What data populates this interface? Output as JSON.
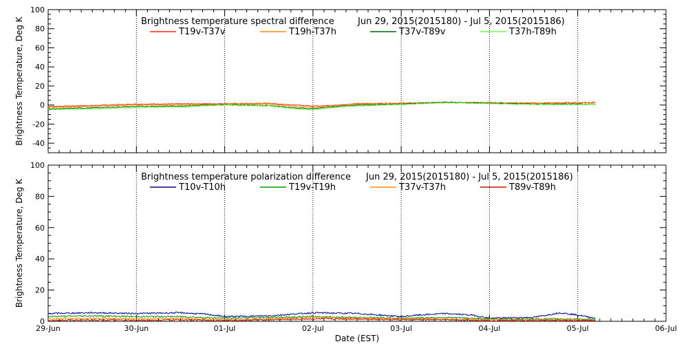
{
  "chart_data": [
    {
      "type": "line",
      "title": "Brightness temperature spectral difference",
      "date_range": "Jun 29, 2015(2015180) - Jul  5, 2015(2015186)",
      "ylabel": "Brightness Temperature, Deg K",
      "xlabel": "",
      "xlim": [
        0,
        7
      ],
      "ylim": [
        -50,
        100
      ],
      "y_ticks": [
        -40,
        -20,
        0,
        20,
        40,
        60,
        80,
        100
      ],
      "grid": "vertical-dotted-at-day-boundaries",
      "legend_position": "top",
      "series": [
        {
          "name": "T19v-T37v",
          "color": "#ff2a00",
          "points": [
            [
              0.0,
              -1.5
            ],
            [
              0.5,
              -0.5
            ],
            [
              1.0,
              1.0
            ],
            [
              1.5,
              1.2
            ],
            [
              2.0,
              1.5
            ],
            [
              2.5,
              1.8
            ],
            [
              2.8,
              0.0
            ],
            [
              3.0,
              -1.0
            ],
            [
              3.2,
              -0.5
            ],
            [
              3.5,
              1.5
            ],
            [
              4.0,
              2.0
            ],
            [
              4.5,
              2.5
            ],
            [
              5.0,
              2.5
            ],
            [
              5.5,
              2.0
            ],
            [
              6.0,
              2.5
            ],
            [
              6.2,
              3.0
            ]
          ]
        },
        {
          "name": "T19h-T37h",
          "color": "#ff8c00",
          "points": [
            [
              0.0,
              -2.5
            ],
            [
              0.5,
              -1.5
            ],
            [
              1.0,
              0.0
            ],
            [
              1.5,
              0.2
            ],
            [
              2.0,
              1.0
            ],
            [
              2.5,
              1.0
            ],
            [
              2.8,
              -1.5
            ],
            [
              3.0,
              -2.5
            ],
            [
              3.2,
              -1.0
            ],
            [
              3.5,
              1.0
            ],
            [
              4.0,
              1.5
            ],
            [
              4.5,
              2.5
            ],
            [
              5.0,
              2.0
            ],
            [
              5.5,
              1.5
            ],
            [
              6.0,
              2.0
            ],
            [
              6.2,
              2.5
            ]
          ]
        },
        {
          "name": "T37v-T89v",
          "color": "#006400",
          "points": [
            [
              0.0,
              -4.0
            ],
            [
              0.5,
              -3.0
            ],
            [
              1.0,
              -1.5
            ],
            [
              1.5,
              -1.0
            ],
            [
              2.0,
              0.5
            ],
            [
              2.5,
              -0.5
            ],
            [
              2.8,
              -3.0
            ],
            [
              3.0,
              -4.0
            ],
            [
              3.2,
              -2.0
            ],
            [
              3.5,
              0.0
            ],
            [
              4.0,
              1.0
            ],
            [
              4.5,
              3.0
            ],
            [
              5.0,
              2.0
            ],
            [
              5.5,
              1.0
            ],
            [
              6.0,
              1.0
            ],
            [
              6.2,
              1.0
            ]
          ]
        },
        {
          "name": "T37h-T89h",
          "color": "#66ff44",
          "points": [
            [
              0.0,
              -5.0
            ],
            [
              0.5,
              -4.0
            ],
            [
              1.0,
              -2.5
            ],
            [
              1.5,
              -2.0
            ],
            [
              2.0,
              0.0
            ],
            [
              2.5,
              -1.0
            ],
            [
              2.8,
              -4.0
            ],
            [
              3.0,
              -5.0
            ],
            [
              3.2,
              -3.0
            ],
            [
              3.5,
              -1.0
            ],
            [
              4.0,
              0.5
            ],
            [
              4.5,
              2.5
            ],
            [
              5.0,
              1.5
            ],
            [
              5.5,
              0.5
            ],
            [
              6.0,
              0.5
            ],
            [
              6.2,
              0.5
            ]
          ]
        }
      ]
    },
    {
      "type": "line",
      "title": "Brightness temperature polarization difference",
      "date_range": "Jun 29, 2015(2015180) - Jul  5, 2015(2015186)",
      "ylabel": "Brightness Temperature, Deg K",
      "xlabel": "Date (EST)",
      "xlim": [
        0,
        7
      ],
      "ylim": [
        0,
        100
      ],
      "y_ticks": [
        0,
        20,
        40,
        60,
        80,
        100
      ],
      "x_tick_labels": [
        "29-Jun",
        "30-Jun",
        "01-Jul",
        "02-Jul",
        "03-Jul",
        "04-Jul",
        "05-Jul",
        "06-Jul"
      ],
      "grid": "vertical-dotted-at-day-boundaries",
      "legend_position": "top",
      "series": [
        {
          "name": "T10v-T10h",
          "color": "#00008b",
          "points": [
            [
              0.0,
              5.0
            ],
            [
              0.5,
              5.5
            ],
            [
              1.0,
              5.0
            ],
            [
              1.5,
              5.5
            ],
            [
              1.8,
              4.5
            ],
            [
              2.0,
              3.0
            ],
            [
              2.5,
              3.5
            ],
            [
              3.0,
              5.5
            ],
            [
              3.5,
              5.0
            ],
            [
              4.0,
              3.0
            ],
            [
              4.2,
              4.0
            ],
            [
              4.5,
              5.0
            ],
            [
              4.8,
              4.0
            ],
            [
              5.0,
              2.0
            ],
            [
              5.5,
              2.5
            ],
            [
              5.8,
              5.5
            ],
            [
              6.0,
              4.0
            ],
            [
              6.2,
              2.0
            ]
          ]
        },
        {
          "name": "T19v-T19h",
          "color": "#009900",
          "points": [
            [
              0.0,
              3.0
            ],
            [
              0.5,
              3.5
            ],
            [
              1.0,
              3.0
            ],
            [
              1.5,
              3.0
            ],
            [
              2.0,
              2.0
            ],
            [
              2.5,
              2.5
            ],
            [
              3.0,
              3.0
            ],
            [
              3.5,
              2.5
            ],
            [
              4.0,
              2.0
            ],
            [
              4.5,
              2.5
            ],
            [
              5.0,
              1.5
            ],
            [
              5.5,
              1.5
            ],
            [
              6.0,
              1.5
            ],
            [
              6.2,
              1.0
            ]
          ]
        },
        {
          "name": "T37v-T37h",
          "color": "#ff8c00",
          "points": [
            [
              0.0,
              1.5
            ],
            [
              0.5,
              2.0
            ],
            [
              1.0,
              1.5
            ],
            [
              1.5,
              2.0
            ],
            [
              2.0,
              1.0
            ],
            [
              2.5,
              1.5
            ],
            [
              3.0,
              2.5
            ],
            [
              3.5,
              2.0
            ],
            [
              4.0,
              1.5
            ],
            [
              4.5,
              1.5
            ],
            [
              5.0,
              1.0
            ],
            [
              5.5,
              1.0
            ],
            [
              6.0,
              1.0
            ],
            [
              6.2,
              0.5
            ]
          ]
        },
        {
          "name": "T89v-T89h",
          "color": "#cc1100",
          "points": [
            [
              0.0,
              0.5
            ],
            [
              0.5,
              1.0
            ],
            [
              1.0,
              0.5
            ],
            [
              1.5,
              1.0
            ],
            [
              2.0,
              0.5
            ],
            [
              2.5,
              1.0
            ],
            [
              3.0,
              1.5
            ],
            [
              3.5,
              1.5
            ],
            [
              4.0,
              1.0
            ],
            [
              4.5,
              1.0
            ],
            [
              5.0,
              0.5
            ],
            [
              5.5,
              0.5
            ],
            [
              6.0,
              0.5
            ],
            [
              6.2,
              0.5
            ]
          ]
        }
      ]
    }
  ]
}
